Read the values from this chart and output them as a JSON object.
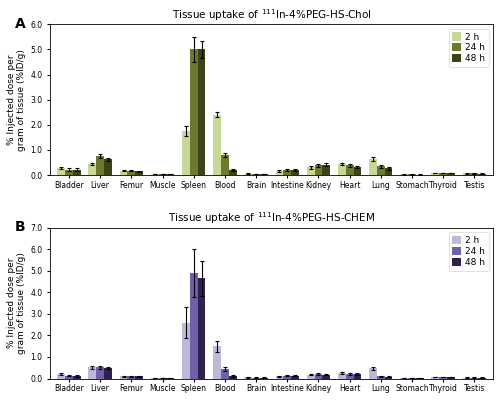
{
  "categories": [
    "Bladder",
    "Liver",
    "Femur",
    "Muscle",
    "Spleen",
    "Blood",
    "Brain",
    "Intestine",
    "Kidney",
    "Heart",
    "Lung",
    "Stomach",
    "Thyroid",
    "Testis"
  ],
  "panel_A": {
    "title": "Tissue uptake of $^{111}$In-4%PEG-HS-Chol",
    "colors": [
      "#c8d896",
      "#6b7a2e",
      "#3b4418"
    ],
    "ylim": [
      0,
      6.0
    ],
    "yticks": [
      0,
      1.0,
      2.0,
      3.0,
      4.0,
      5.0,
      6.0
    ],
    "data_2h": [
      0.28,
      0.43,
      0.17,
      0.04,
      1.75,
      2.4,
      0.06,
      0.17,
      0.3,
      0.43,
      0.62,
      0.03,
      0.08,
      0.07
    ],
    "data_24h": [
      0.22,
      0.75,
      0.17,
      0.04,
      5.0,
      0.8,
      0.05,
      0.2,
      0.38,
      0.38,
      0.35,
      0.03,
      0.09,
      0.07
    ],
    "data_48h": [
      0.22,
      0.62,
      0.16,
      0.04,
      5.0,
      0.2,
      0.05,
      0.2,
      0.4,
      0.32,
      0.26,
      0.02,
      0.08,
      0.06
    ],
    "err_2h": [
      0.05,
      0.05,
      0.02,
      0.01,
      0.2,
      0.1,
      0.01,
      0.03,
      0.05,
      0.05,
      0.08,
      0.01,
      0.01,
      0.01
    ],
    "err_24h": [
      0.04,
      0.08,
      0.02,
      0.01,
      0.5,
      0.08,
      0.01,
      0.03,
      0.06,
      0.05,
      0.06,
      0.01,
      0.01,
      0.01
    ],
    "err_48h": [
      0.04,
      0.07,
      0.02,
      0.01,
      0.35,
      0.04,
      0.01,
      0.03,
      0.06,
      0.04,
      0.05,
      0.01,
      0.01,
      0.01
    ],
    "legend_labels": [
      "2 h",
      "24 h",
      "48 h"
    ]
  },
  "panel_B": {
    "title": "Tissue uptake of $^{111}$In-4%PEG-HS-CHEM",
    "colors": [
      "#c0b8d8",
      "#7060a8",
      "#302050"
    ],
    "ylim": [
      0,
      7.0
    ],
    "yticks": [
      0,
      1.0,
      2.0,
      3.0,
      4.0,
      5.0,
      6.0,
      7.0
    ],
    "data_2h": [
      0.2,
      0.52,
      0.1,
      0.03,
      2.6,
      1.5,
      0.05,
      0.1,
      0.18,
      0.24,
      0.47,
      0.02,
      0.06,
      0.04
    ],
    "data_24h": [
      0.13,
      0.52,
      0.1,
      0.03,
      4.9,
      0.44,
      0.04,
      0.13,
      0.2,
      0.2,
      0.1,
      0.02,
      0.07,
      0.04
    ],
    "data_48h": [
      0.11,
      0.48,
      0.1,
      0.02,
      4.65,
      0.1,
      0.04,
      0.12,
      0.18,
      0.2,
      0.09,
      0.02,
      0.06,
      0.04
    ],
    "err_2h": [
      0.04,
      0.06,
      0.02,
      0.01,
      0.7,
      0.25,
      0.01,
      0.02,
      0.04,
      0.04,
      0.07,
      0.01,
      0.01,
      0.01
    ],
    "err_24h": [
      0.03,
      0.06,
      0.02,
      0.01,
      1.1,
      0.08,
      0.01,
      0.02,
      0.04,
      0.04,
      0.03,
      0.01,
      0.01,
      0.01
    ],
    "err_48h": [
      0.03,
      0.06,
      0.02,
      0.01,
      0.8,
      0.04,
      0.01,
      0.02,
      0.03,
      0.04,
      0.02,
      0.01,
      0.01,
      0.01
    ],
    "legend_labels": [
      "2 h",
      "24 h",
      "48 h"
    ]
  },
  "ylabel": "% Injected dose per\ngram of tissue (%ID/g)",
  "panel_labels": [
    "A",
    "B"
  ],
  "bar_width": 0.25,
  "figsize": [
    5.0,
    4.0
  ],
  "dpi": 100,
  "background_color": "#ffffff",
  "label_fontsize": 6.5,
  "title_fontsize": 7.5,
  "tick_fontsize": 5.5,
  "legend_fontsize": 6.5,
  "ylabel_fontsize": 6.5
}
